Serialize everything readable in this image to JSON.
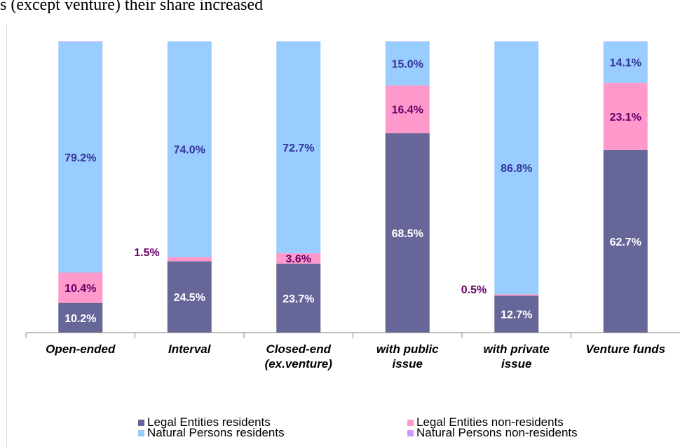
{
  "header": {
    "subtitle": "s (except venture) their share increased"
  },
  "colors": {
    "legal_residents": "#666699",
    "legal_nonresidents": "#ff99cc",
    "natural_residents": "#99ccff",
    "natural_nonresidents": "#cc99ff",
    "label_white": "#ffffff",
    "label_blue": "#333399",
    "label_purple": "#660066"
  },
  "chart_data": {
    "type": "bar",
    "stacked": true,
    "percent": true,
    "categories": [
      "Open-ended",
      "Interval",
      "Closed-end\n(ex.venture)",
      "with public\nissue",
      "with private\nissue",
      "Venture funds"
    ],
    "series": [
      {
        "name": "Legal Entities residents",
        "values": [
          10.2,
          24.5,
          23.7,
          68.5,
          12.7,
          62.7
        ],
        "labels": [
          "10.2%",
          "24.5%",
          "23.7%",
          "68.5%",
          "12.7%",
          "62.7%"
        ]
      },
      {
        "name": "Legal Entities non-residents",
        "values": [
          10.4,
          1.5,
          3.6,
          16.4,
          0.5,
          23.1
        ],
        "labels": [
          "10.4%",
          "1.5%",
          "3.6%",
          "16.4%",
          "0.5%",
          "23.1%"
        ]
      },
      {
        "name": "Natural Persons residents",
        "values": [
          79.2,
          74.0,
          72.7,
          15.0,
          86.8,
          14.1
        ],
        "labels": [
          "79.2%",
          "74.0%",
          "72.7%",
          "15.0%",
          "86.8%",
          "14.1%"
        ]
      },
      {
        "name": "Natural Persons non-residents",
        "values": [
          0.2,
          0.0,
          0.0,
          0.1,
          0.0,
          0.1
        ],
        "labels": [
          "",
          "",
          "",
          "",
          "",
          ""
        ]
      }
    ],
    "ylim": [
      0,
      100
    ],
    "legend_position": "bottom",
    "grid": false
  }
}
